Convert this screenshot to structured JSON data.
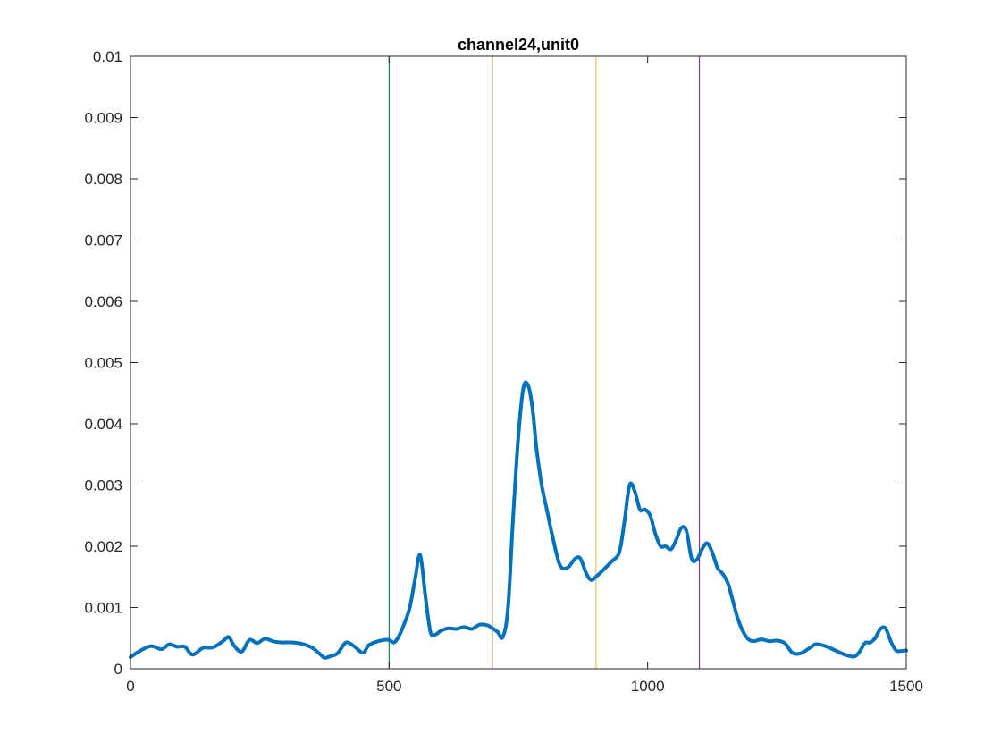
{
  "chart_data": {
    "type": "line",
    "title": "channel24,unit0",
    "xlabel": "",
    "ylabel": "",
    "xlim": [
      0,
      1500
    ],
    "ylim": [
      0,
      0.01
    ],
    "grid": false,
    "x_ticks": [
      0,
      500,
      1000,
      1500
    ],
    "x_tick_labels": [
      "0",
      "500",
      "1000",
      "1500"
    ],
    "y_ticks": [
      0,
      0.001,
      0.002,
      0.003,
      0.004,
      0.005,
      0.006,
      0.007,
      0.008,
      0.009,
      0.01
    ],
    "y_tick_labels": [
      "0",
      "0.001",
      "0.002",
      "0.003",
      "0.004",
      "0.005",
      "0.006",
      "0.007",
      "0.008",
      "0.009",
      "0.01"
    ],
    "vertical_lines": [
      {
        "x": 500,
        "color": "#1a7f6f"
      },
      {
        "x": 700,
        "color": "#e0a080"
      },
      {
        "x": 900,
        "color": "#e8c060"
      },
      {
        "x": 1100,
        "color": "#8a3a8a"
      }
    ],
    "series": [
      {
        "color": "#0072BD",
        "x": [
          0,
          20,
          40,
          60,
          75,
          90,
          105,
          120,
          140,
          160,
          180,
          190,
          200,
          215,
          230,
          245,
          260,
          275,
          290,
          310,
          330,
          350,
          365,
          375,
          385,
          400,
          415,
          425,
          435,
          450,
          460,
          475,
          490,
          500,
          510,
          520,
          530,
          540,
          550,
          560,
          570,
          580,
          590,
          600,
          615,
          630,
          645,
          660,
          675,
          690,
          700,
          710,
          720,
          730,
          740,
          750,
          760,
          770,
          778,
          785,
          795,
          805,
          815,
          830,
          845,
          860,
          870,
          880,
          890,
          900,
          915,
          930,
          945,
          955,
          965,
          975,
          985,
          995,
          1005,
          1015,
          1025,
          1035,
          1045,
          1055,
          1065,
          1075,
          1085,
          1095,
          1105,
          1115,
          1125,
          1135,
          1145,
          1155,
          1165,
          1175,
          1185,
          1195,
          1205,
          1220,
          1235,
          1250,
          1265,
          1280,
          1295,
          1310,
          1325,
          1340,
          1355,
          1370,
          1385,
          1400,
          1410,
          1420,
          1430,
          1440,
          1450,
          1460,
          1470,
          1480,
          1490,
          1500
        ],
        "y": [
          0.00019,
          0.0003,
          0.00037,
          0.00032,
          0.0004,
          0.00036,
          0.00036,
          0.00023,
          0.00034,
          0.00035,
          0.00046,
          0.00052,
          0.00038,
          0.00028,
          0.00047,
          0.00042,
          0.00049,
          0.00045,
          0.00043,
          0.00043,
          0.00041,
          0.00035,
          0.00025,
          0.00018,
          0.0002,
          0.00025,
          0.00042,
          0.00041,
          0.00035,
          0.00026,
          0.00038,
          0.00044,
          0.00047,
          0.00047,
          0.00043,
          0.00055,
          0.00075,
          0.001,
          0.00145,
          0.00186,
          0.0012,
          0.0006,
          0.00056,
          0.00062,
          0.00066,
          0.00065,
          0.00068,
          0.00065,
          0.00072,
          0.00071,
          0.00066,
          0.0006,
          0.00052,
          0.001,
          0.0025,
          0.0038,
          0.0046,
          0.0046,
          0.0042,
          0.0036,
          0.003,
          0.0026,
          0.0022,
          0.0017,
          0.00165,
          0.0018,
          0.0018,
          0.00158,
          0.00145,
          0.0015,
          0.00162,
          0.00175,
          0.0019,
          0.0024,
          0.003,
          0.0029,
          0.0026,
          0.0026,
          0.0025,
          0.0022,
          0.002,
          0.002,
          0.00195,
          0.0021,
          0.0023,
          0.00225,
          0.0018,
          0.00178,
          0.00195,
          0.00205,
          0.0019,
          0.00165,
          0.00155,
          0.0014,
          0.0011,
          0.0008,
          0.0006,
          0.00048,
          0.00045,
          0.00048,
          0.00045,
          0.00046,
          0.00042,
          0.00026,
          0.00025,
          0.00032,
          0.0004,
          0.00038,
          0.00033,
          0.00027,
          0.00022,
          0.0002,
          0.00028,
          0.00042,
          0.00043,
          0.0005,
          0.00065,
          0.00066,
          0.00045,
          0.0003,
          0.00029,
          0.0003
        ]
      }
    ]
  }
}
